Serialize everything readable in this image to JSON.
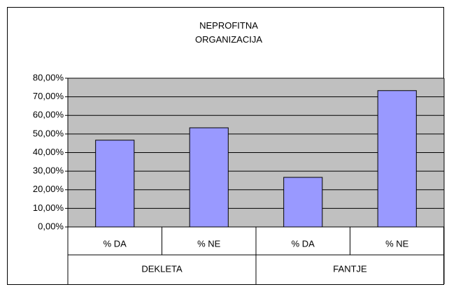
{
  "chart_data": {
    "type": "bar",
    "title": "NEPROFITNA ORGANIZACIJA",
    "categories": [
      "% DA",
      "% NE",
      "% DA",
      "% NE"
    ],
    "groups": [
      "DEKLETA",
      "FANTJE"
    ],
    "values": [
      46.67,
      53.33,
      26.67,
      73.33
    ],
    "color": "#9999ff",
    "ylim": [
      0,
      80
    ],
    "yticks": [
      {
        "value": 0,
        "label": "0,00%"
      },
      {
        "value": 10,
        "label": "10,00%"
      },
      {
        "value": 20,
        "label": "20,00%"
      },
      {
        "value": 30,
        "label": "30,00%"
      },
      {
        "value": 40,
        "label": "40,00%"
      },
      {
        "value": 50,
        "label": "50,00%"
      },
      {
        "value": 60,
        "label": "60,00%"
      },
      {
        "value": 70,
        "label": "70,00%"
      },
      {
        "value": 80,
        "label": "80,00%"
      }
    ],
    "grid": true
  }
}
